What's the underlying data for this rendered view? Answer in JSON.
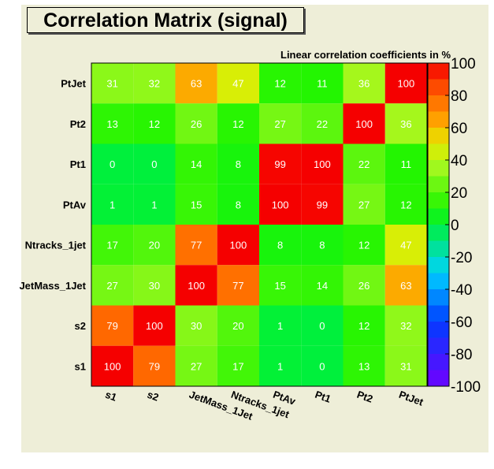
{
  "chart_data": {
    "type": "heatmap",
    "title": "Correlation Matrix (signal)",
    "subtitle": "Linear correlation coefficients in %",
    "x_labels": [
      "s1",
      "s2",
      "JetMass_1Jet",
      "Ntracks_1jet",
      "PtAv",
      "Pt1",
      "Pt2",
      "PtJet"
    ],
    "y_labels_top_to_bottom": [
      "PtJet",
      "Pt2",
      "Pt1",
      "PtAv",
      "Ntracks_1jet",
      "JetMass_1Jet",
      "s2",
      "s1"
    ],
    "values_top_to_bottom": [
      [
        31,
        32,
        63,
        47,
        12,
        11,
        36,
        100
      ],
      [
        13,
        12,
        26,
        12,
        27,
        22,
        100,
        36
      ],
      [
        0,
        0,
        14,
        8,
        99,
        100,
        22,
        11
      ],
      [
        1,
        1,
        15,
        8,
        100,
        99,
        27,
        12
      ],
      [
        17,
        20,
        77,
        100,
        8,
        8,
        12,
        47
      ],
      [
        27,
        30,
        100,
        77,
        15,
        14,
        26,
        63
      ],
      [
        79,
        100,
        30,
        20,
        1,
        0,
        12,
        32
      ],
      [
        100,
        79,
        27,
        17,
        1,
        0,
        13,
        31
      ]
    ],
    "zlim": [
      -100,
      100
    ],
    "colorbar_ticks": [
      100,
      80,
      60,
      40,
      20,
      0,
      -20,
      -40,
      -60,
      -80,
      -100
    ]
  }
}
